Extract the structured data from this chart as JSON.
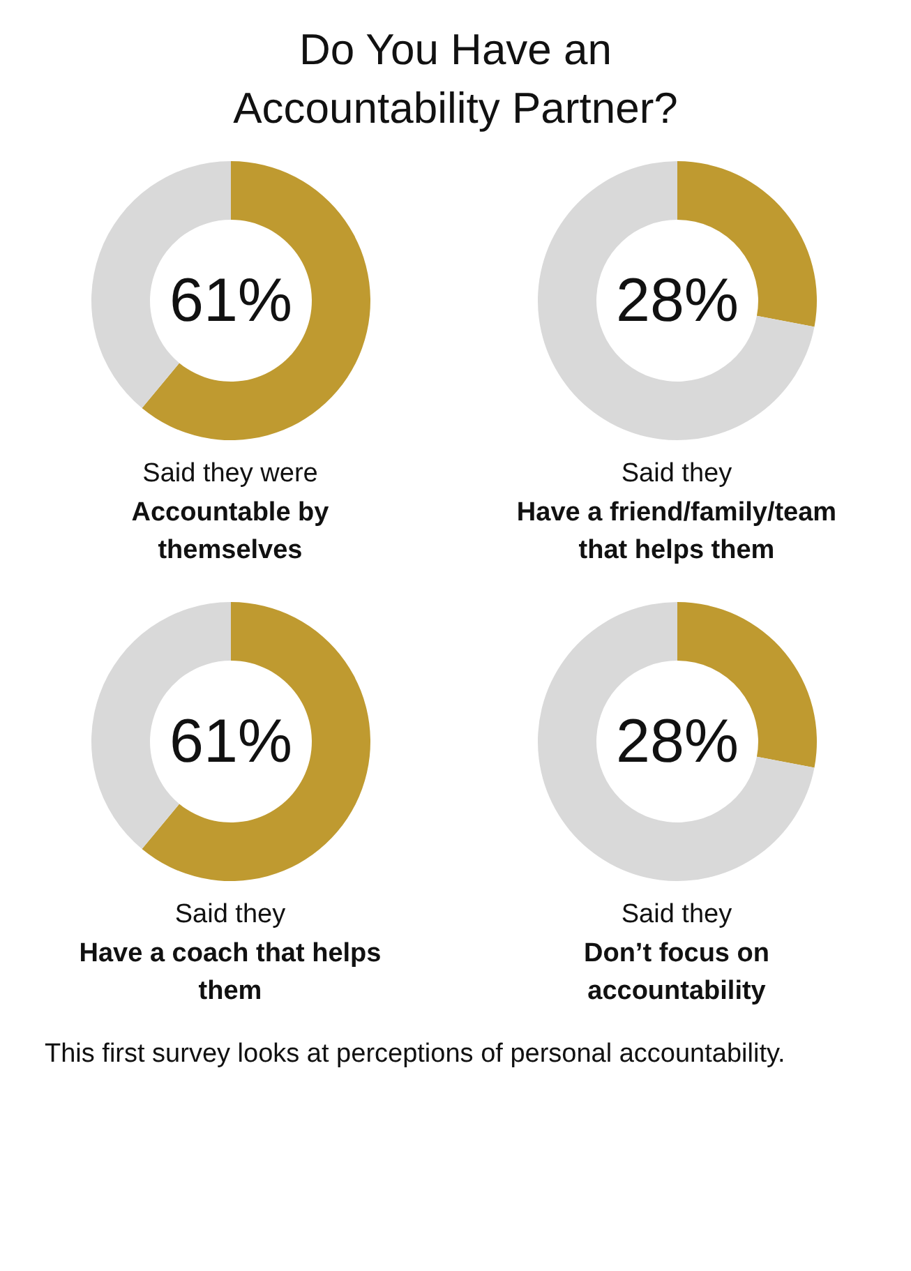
{
  "chart_data": [
    {
      "type": "donut",
      "title": "Do You Have an Accountability Partner?",
      "subtitle": "Said they were",
      "xlabel": "Accountable by themselves",
      "values": [
        61,
        39
      ],
      "colors": [
        "#bf9a30",
        "#d9d9d9"
      ],
      "value_labels": [
        "61%",
        null
      ]
    },
    {
      "type": "donut",
      "subtitle": "Said they",
      "xlabel": "Have a friend/family/team that helps them",
      "values": [
        28,
        72
      ],
      "colors": [
        "#bf9a30",
        "#d9d9d9"
      ],
      "value_labels": [
        "28%",
        null
      ]
    },
    {
      "type": "donut",
      "subtitle": "Said they",
      "xlabel": "Have a coach that helps them",
      "values": [
        61,
        39
      ],
      "colors": [
        "#bf9a30",
        "#d9d9d9"
      ],
      "value_labels": [
        "61%",
        null
      ]
    },
    {
      "type": "donut",
      "subtitle": "Said they",
      "xlabel": "Don’t focus on accountability",
      "values": [
        28,
        72
      ],
      "colors": [
        "#bf9a30",
        "#d9d9d9"
      ],
      "value_labels": [
        "28%",
        null
      ],
      "annotations": [
        "This first survey looks at perceptions of personal accountability."
      ]
    }
  ]
}
